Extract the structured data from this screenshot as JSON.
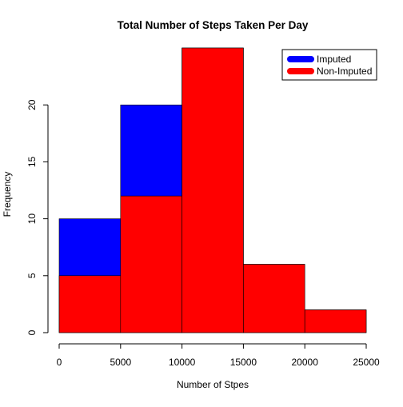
{
  "chart_data": {
    "type": "bar",
    "title": "Total Number of Steps Taken Per Day",
    "xlabel": "Number of Stpes",
    "ylabel": "Frequency",
    "xlim": [
      0,
      25000
    ],
    "ylim": [
      0,
      25
    ],
    "x_ticks": [
      "0",
      "5000",
      "10000",
      "15000",
      "20000",
      "25000"
    ],
    "y_ticks": [
      "0",
      "5",
      "10",
      "15",
      "20"
    ],
    "bins": [
      [
        0,
        5000
      ],
      [
        5000,
        10000
      ],
      [
        10000,
        15000
      ],
      [
        15000,
        20000
      ],
      [
        20000,
        25000
      ]
    ],
    "series": [
      {
        "name": "Imputed",
        "color": "#0000ff",
        "values": [
          10,
          20,
          25,
          6,
          2
        ]
      },
      {
        "name": "Non-Imputed",
        "color": "#ff0000",
        "values": [
          5,
          12,
          25,
          6,
          2
        ]
      }
    ],
    "legend_position": "top-right",
    "grid": false
  }
}
